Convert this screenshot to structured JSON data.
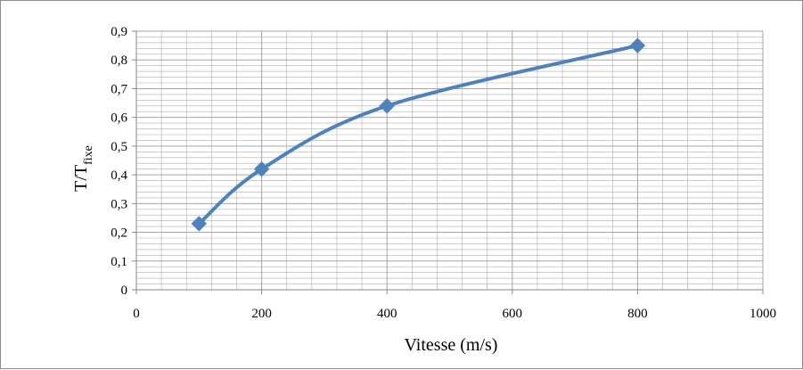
{
  "chart_data": {
    "type": "line",
    "x": [
      100,
      200,
      400,
      800
    ],
    "series": [
      {
        "values": [
          0.23,
          0.42,
          0.64,
          0.85
        ]
      }
    ],
    "xlabel": "Vitesse (m/s)",
    "ylabel": {
      "main": "T/T",
      "subscript": "fixe"
    },
    "xlim": [
      0,
      1000
    ],
    "ylim": [
      0,
      0.9
    ],
    "xticks": [
      0,
      200,
      400,
      600,
      800,
      1000
    ],
    "xtick_labels": [
      "0",
      "200",
      "400",
      "600",
      "800",
      "1000"
    ],
    "yticks": [
      0,
      0.1,
      0.2,
      0.3,
      0.4,
      0.5,
      0.6,
      0.7,
      0.8,
      0.9
    ],
    "ytick_labels": [
      "0",
      "0,1",
      "0,2",
      "0,3",
      "0,4",
      "0,5",
      "0,6",
      "0,7",
      "0,8",
      "0,9"
    ],
    "grid": true,
    "marker": "diamond",
    "smooth": true,
    "colors": {
      "series": "#4f81bd",
      "grid": "#a6a6a6",
      "axis": "#868686"
    }
  }
}
